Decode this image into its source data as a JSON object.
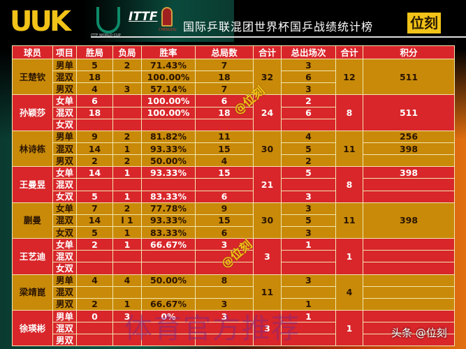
{
  "header": {
    "logo": "UUK",
    "itt_logo_text": "ITTF WORLD CUP",
    "ittf": "ITTF",
    "chengdu": "CHENGDU",
    "title": "国际乒联混团世界杯国乒战绩统计榜",
    "brand": "位刻"
  },
  "columns": [
    "球员",
    "项目",
    "胜局",
    "负局",
    "胜率",
    "总局数",
    "合计",
    "总出场次",
    "合计",
    "积分"
  ],
  "players": [
    {
      "name": "王楚钦",
      "color": "gold",
      "total_games": "32",
      "total_apps": "12",
      "rows": [
        [
          "男单",
          "5",
          "2",
          "71.43%",
          "7",
          "3"
        ],
        [
          "混双",
          "18",
          "",
          "100.00%",
          "18",
          "6"
        ],
        [
          "男双",
          "4",
          "3",
          "57.14%",
          "7",
          "3"
        ]
      ],
      "points": [
        {
          "row": 0,
          "span": 3,
          "value": "511"
        }
      ]
    },
    {
      "name": "孙颖莎",
      "color": "red",
      "total_games": "24",
      "total_apps": "8",
      "rows": [
        [
          "女单",
          "6",
          "",
          "100.00%",
          "6",
          "2"
        ],
        [
          "混双",
          "18",
          "",
          "100.00%",
          "18",
          "6"
        ],
        [
          "女双",
          "",
          "",
          "",
          "",
          ""
        ]
      ],
      "points": [
        {
          "row": 0,
          "span": 3,
          "value": "511"
        }
      ]
    },
    {
      "name": "林诗栋",
      "color": "gold",
      "total_games": "30",
      "total_apps": "11",
      "rows": [
        [
          "男单",
          "9",
          "2",
          "81.82%",
          "11",
          "4"
        ],
        [
          "混双",
          "14",
          "1",
          "93.33%",
          "15",
          "5"
        ],
        [
          "男双",
          "2",
          "2",
          "50.00%",
          "4",
          "2"
        ]
      ],
      "points": [
        {
          "row": 0,
          "span": 1,
          "value": "256"
        },
        {
          "row": 1,
          "span": 1,
          "value": "398"
        },
        {
          "row": 2,
          "span": 1,
          "value": ""
        }
      ]
    },
    {
      "name": "王曼昱",
      "color": "red",
      "total_games": "21",
      "total_apps": "8",
      "rows": [
        [
          "女单",
          "14",
          "1",
          "93.33%",
          "15",
          "5"
        ],
        [
          "混双",
          "",
          "",
          "",
          "",
          ""
        ],
        [
          "女双",
          "5",
          "1",
          "83.33%",
          "6",
          "3"
        ]
      ],
      "points": [
        {
          "row": 0,
          "span": 1,
          "value": "398"
        },
        {
          "row": 1,
          "span": 1,
          "value": ""
        },
        {
          "row": 2,
          "span": 1,
          "value": ""
        }
      ]
    },
    {
      "name": "蒯曼",
      "color": "gold",
      "total_games": "30",
      "total_apps": "11",
      "rows": [
        [
          "女单",
          "7",
          "2",
          "77.78%",
          "9",
          "3"
        ],
        [
          "混双",
          "14",
          "l 1",
          "93.33%",
          "15",
          "5"
        ],
        [
          "女双",
          "5",
          "1",
          "83.33%",
          "6",
          "3"
        ]
      ],
      "points": [
        {
          "row": 0,
          "span": 3,
          "value": "398"
        }
      ]
    },
    {
      "name": "王艺迪",
      "color": "red",
      "total_games": "3",
      "total_apps": "1",
      "rows": [
        [
          "女单",
          "2",
          "1",
          "66.67%",
          "3",
          "1"
        ],
        [
          "混双",
          "",
          "",
          "",
          "",
          ""
        ],
        [
          "女双",
          "",
          "",
          "",
          "",
          ""
        ]
      ],
      "points": [
        {
          "row": 0,
          "span": 1,
          "value": ""
        },
        {
          "row": 1,
          "span": 1,
          "value": ""
        },
        {
          "row": 2,
          "span": 1,
          "value": ""
        }
      ]
    },
    {
      "name": "梁靖崑",
      "color": "gold",
      "total_games": "11",
      "total_apps": "4",
      "rows": [
        [
          "男单",
          "4",
          "4",
          "50.00%",
          "8",
          "3"
        ],
        [
          "混双",
          "",
          "",
          "",
          "",
          ""
        ],
        [
          "男双",
          "2",
          "1",
          "66.67%",
          "3",
          "1"
        ]
      ],
      "points": [
        {
          "row": 0,
          "span": 1,
          "value": ""
        },
        {
          "row": 1,
          "span": 1,
          "value": ""
        },
        {
          "row": 2,
          "span": 1,
          "value": ""
        }
      ]
    },
    {
      "name": "徐瑛彬",
      "color": "red",
      "total_games": "3",
      "total_apps": "1",
      "rows": [
        [
          "男单",
          "0",
          "3",
          "0%",
          "3",
          "1"
        ],
        [
          "混双",
          "",
          "",
          "",
          "",
          ""
        ],
        [
          "男双",
          "",
          "",
          "",
          "",
          ""
        ]
      ],
      "points": [
        {
          "row": 0,
          "span": 1,
          "value": ""
        },
        {
          "row": 1,
          "span": 1,
          "value": ""
        },
        {
          "row": 2,
          "span": 1,
          "value": ""
        }
      ]
    }
  ],
  "watermarks": {
    "mark": "@位刻",
    "center": "体育官方推荐",
    "footer": "头条 @位刻"
  },
  "colors": {
    "gold": "#c88a08",
    "red": "#d8262a",
    "accent": "#f2c318"
  }
}
